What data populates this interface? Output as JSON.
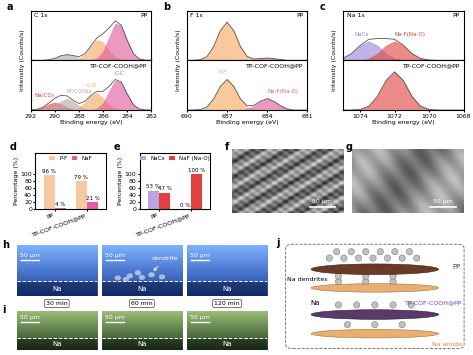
{
  "chart_data": [
    {
      "type": "line",
      "label": "a",
      "title": "C 1s",
      "x_label": "Binding energy (eV)",
      "y_label": "Intensity (Counts/s)",
      "x": [
        292,
        291.5,
        291,
        290.5,
        290,
        289.5,
        289,
        288.5,
        288,
        287.5,
        287,
        286.5,
        286,
        285.5,
        285,
        284.5,
        284,
        283.5,
        283,
        282.5,
        282
      ],
      "xlim": [
        292,
        282
      ],
      "xticks": [
        292,
        290,
        288,
        286,
        284,
        282
      ],
      "tick_labels": "x",
      "stacks": [
        {
          "name": "PP",
          "ylim": [
            0,
            1.3
          ],
          "series": [
            {
              "type": "area",
              "color": "#b0a8a8",
              "values": [
                0,
                0,
                0,
                0.015,
                0.054,
                0.12,
                0.15,
                0.12,
                0.054,
                0.015,
                0,
                0,
                0,
                0,
                0,
                0,
                0,
                0,
                0,
                0,
                0
              ]
            },
            {
              "type": "area",
              "color": "#f2a65a",
              "values": [
                0,
                0,
                0,
                0,
                0,
                0,
                0,
                0.006,
                0.04,
                0.16,
                0.38,
                0.54,
                0.47,
                0.24,
                0.07,
                0.014,
                0,
                0,
                0,
                0,
                0
              ]
            },
            {
              "type": "area",
              "color": "#e0559a",
              "values": [
                0,
                0,
                0,
                0,
                0,
                0,
                0,
                0,
                0,
                0,
                0.007,
                0.05,
                0.23,
                0.61,
                0.96,
                0.91,
                0.52,
                0.18,
                0.037,
                0.005,
                0
              ]
            },
            {
              "type": "line",
              "color": "#555555",
              "values": [
                0,
                0,
                0,
                0.015,
                0.054,
                0.12,
                0.15,
                0.126,
                0.094,
                0.175,
                0.387,
                0.59,
                0.7,
                0.85,
                1.03,
                0.924,
                0.52,
                0.18,
                0.037,
                0.005,
                0
              ]
            }
          ]
        },
        {
          "name": "TP-COF-COOH@PP",
          "ylim": [
            0,
            1.3
          ],
          "series": [
            {
              "type": "area",
              "name": "Na₂CO₃",
              "color": "#e0403a",
              "values": [
                0,
                0.02,
                0.07,
                0.155,
                0.2,
                0.155,
                0.07,
                0.02,
                0,
                0,
                0,
                0,
                0,
                0,
                0,
                0,
                0,
                0,
                0,
                0,
                0
              ]
            },
            {
              "type": "area",
              "name": "ROCO₂Na",
              "color": "#b0a8a8",
              "values": [
                0,
                0,
                0,
                0.03,
                0.11,
                0.23,
                0.3,
                0.23,
                0.11,
                0.03,
                0,
                0,
                0,
                0,
                0,
                0,
                0,
                0,
                0,
                0,
                0
              ]
            },
            {
              "type": "area",
              "name": "C-O",
              "color": "#f2a65a",
              "values": [
                0,
                0,
                0,
                0,
                0,
                0,
                0,
                0.011,
                0.06,
                0.2,
                0.38,
                0.45,
                0.31,
                0.13,
                0.03,
                0.005,
                0,
                0,
                0,
                0,
                0
              ]
            },
            {
              "type": "area",
              "name": "C-C",
              "color": "#e0559a",
              "values": [
                0,
                0,
                0,
                0,
                0,
                0,
                0,
                0,
                0,
                0,
                0.006,
                0.04,
                0.18,
                0.49,
                0.77,
                0.73,
                0.42,
                0.14,
                0.03,
                0.004,
                0
              ]
            },
            {
              "type": "line",
              "color": "#555555",
              "values": [
                0,
                0.02,
                0.07,
                0.185,
                0.31,
                0.385,
                0.37,
                0.261,
                0.17,
                0.23,
                0.386,
                0.49,
                0.49,
                0.62,
                0.8,
                0.735,
                0.42,
                0.14,
                0.03,
                0.004,
                0
              ]
            }
          ]
        }
      ]
    },
    {
      "type": "line",
      "label": "b",
      "title": "F 1s",
      "x_label": "Binding energy (eV)",
      "y_label": "Intensity (Counts/s)",
      "x": [
        690,
        689.5,
        689,
        688.5,
        688,
        687.5,
        687,
        686.5,
        686,
        685.5,
        685,
        684.5,
        684,
        683.5,
        683,
        682.5,
        682,
        681.5,
        681
      ],
      "xlim": [
        690,
        681
      ],
      "xticks": [
        690,
        687,
        684,
        681
      ],
      "tick_labels": "x",
      "stacks": [
        {
          "name": "PP",
          "ylim": [
            0,
            1.3
          ],
          "series": [
            {
              "type": "area",
              "color": "#f2a65a",
              "values": [
                0,
                0.002,
                0.017,
                0.1,
                0.36,
                0.775,
                1,
                0.775,
                0.36,
                0.1,
                0.017,
                0.002,
                0,
                0,
                0,
                0,
                0,
                0,
                0
              ]
            },
            {
              "type": "area",
              "color": "#e0559a",
              "values": [
                0,
                0,
                0,
                0,
                0,
                0,
                0,
                0,
                0,
                0,
                0.02,
                0.047,
                0.06,
                0.047,
                0.02,
                0,
                0,
                0,
                0
              ]
            },
            {
              "type": "line",
              "color": "#555555",
              "values": [
                0,
                0.002,
                0.017,
                0.1,
                0.36,
                0.775,
                1,
                0.775,
                0.36,
                0.1,
                0.037,
                0.049,
                0.06,
                0.047,
                0.02,
                0,
                0,
                0,
                0
              ]
            }
          ]
        },
        {
          "name": "TP-COF-COOH@PP",
          "ylim": [
            0,
            1.3
          ],
          "series": [
            {
              "type": "area",
              "name": "P-F",
              "color": "#f2a65a",
              "values": [
                0,
                0.002,
                0.014,
                0.08,
                0.29,
                0.62,
                0.8,
                0.62,
                0.29,
                0.08,
                0.014,
                0.002,
                0,
                0,
                0,
                0,
                0,
                0,
                0
              ]
            },
            {
              "type": "area",
              "name": "Na-F(Na-O)",
              "color": "#e0559a",
              "values": [
                0,
                0,
                0,
                0,
                0,
                0,
                0,
                0,
                0,
                0.03,
                0.11,
                0.23,
                0.3,
                0.23,
                0.11,
                0.03,
                0,
                0,
                0
              ]
            },
            {
              "type": "line",
              "color": "#555555",
              "values": [
                0,
                0.002,
                0.014,
                0.08,
                0.29,
                0.62,
                0.8,
                0.62,
                0.29,
                0.11,
                0.124,
                0.232,
                0.3,
                0.23,
                0.11,
                0.03,
                0,
                0,
                0
              ]
            }
          ]
        }
      ]
    },
    {
      "type": "line",
      "label": "c",
      "title": "Na 1s",
      "x_label": "Binding energy (eV)",
      "y_label": "Intensity (Counts/s)",
      "x": [
        1075,
        1074.5,
        1074,
        1073.5,
        1073,
        1072.5,
        1072,
        1071.5,
        1071,
        1070.5,
        1070,
        1069.5,
        1069,
        1068.5,
        1068
      ],
      "xlim": [
        1075,
        1068
      ],
      "xticks": [
        1074,
        1072,
        1070,
        1068
      ],
      "tick_labels": "x",
      "stacks": [
        {
          "name": "PP",
          "ylim": [
            0,
            1.3
          ],
          "series": [
            {
              "type": "area",
              "name": "NaCx",
              "color": "#9b7fd4",
              "values": [
                0.05,
                0.18,
                0.39,
                0.5,
                0.39,
                0.18,
                0.05,
                0.01,
                0,
                0,
                0,
                0,
                0,
                0,
                0
              ]
            },
            {
              "type": "area",
              "name": "Na-F(Na-O)",
              "color": "#e0403a",
              "values": [
                0,
                0,
                0,
                0.05,
                0.18,
                0.39,
                0.5,
                0.39,
                0.18,
                0.05,
                0.01,
                0,
                0,
                0,
                0
              ]
            },
            {
              "type": "line",
              "color": "#555555",
              "values": [
                0.05,
                0.18,
                0.39,
                0.55,
                0.57,
                0.57,
                0.55,
                0.4,
                0.18,
                0.05,
                0.01,
                0,
                0,
                0,
                0
              ]
            }
          ]
        },
        {
          "name": "TP-COF-COOH@PP",
          "ylim": [
            0,
            1.3
          ],
          "series": [
            {
              "type": "area",
              "color": "#e0403a",
              "values": [
                0,
                0.002,
                0.017,
                0.1,
                0.36,
                0.775,
                1,
                0.775,
                0.36,
                0.1,
                0.017,
                0.002,
                0,
                0,
                0
              ]
            },
            {
              "type": "line",
              "color": "#555555",
              "values": [
                0,
                0.002,
                0.017,
                0.1,
                0.36,
                0.775,
                1,
                0.775,
                0.36,
                0.1,
                0.017,
                0.002,
                0,
                0,
                0
              ]
            }
          ]
        }
      ]
    },
    {
      "type": "bar",
      "label": "d",
      "categories": [
        "PP",
        "TP-COF-COOH@PP"
      ],
      "y_label": "Percentage (%)",
      "ylim": [
        0,
        160
      ],
      "yticks": [
        0,
        20,
        40,
        60,
        80,
        100
      ],
      "legend": "upper center",
      "data_labels": true,
      "series": [
        {
          "name": "P-F",
          "color": "#f7c9a0",
          "values": [
            96,
            79
          ],
          "value_labels": [
            "96 %",
            "79 %"
          ]
        },
        {
          "name": "NaF",
          "color": "#e65aa8",
          "values": [
            4,
            21
          ],
          "value_labels": [
            "4 %",
            "21 %"
          ]
        }
      ]
    },
    {
      "type": "bar",
      "label": "e",
      "categories": [
        "PP",
        "TP-COF-COOH@PP"
      ],
      "y_label": "Percentage (%)",
      "ylim": [
        0,
        160
      ],
      "yticks": [
        0,
        20,
        40,
        60,
        80,
        100
      ],
      "legend": "upper center",
      "data_labels": true,
      "series": [
        {
          "name": "NaCx",
          "color": "#b9a6e0",
          "values": [
            53,
            0
          ],
          "value_labels": [
            "53 %",
            "0 %"
          ]
        },
        {
          "name": "NaF (Na-O)",
          "color": "#e04040",
          "values": [
            47,
            100
          ],
          "value_labels": [
            "47 %",
            "100 %"
          ]
        }
      ]
    }
  ],
  "sem": [
    {
      "label": "f",
      "scale_bar": "50 μm"
    },
    {
      "label": "g",
      "scale_bar": "50 μm"
    }
  ],
  "optical": [
    {
      "label": "h",
      "electrode": "Na",
      "scale_bar": "50 μm",
      "annotation": "dendrite"
    },
    {
      "label": "i",
      "electrode": "Na",
      "scale_bar": "50 μm"
    }
  ],
  "times": [
    "30 min",
    "60 min",
    "120 min"
  ],
  "schematic": {
    "label": "j",
    "separators": [
      "PP",
      "TP-COF-COOH@PP"
    ],
    "dendrites": "Na dendrites",
    "ion": "Na",
    "anode": "Na anode"
  }
}
